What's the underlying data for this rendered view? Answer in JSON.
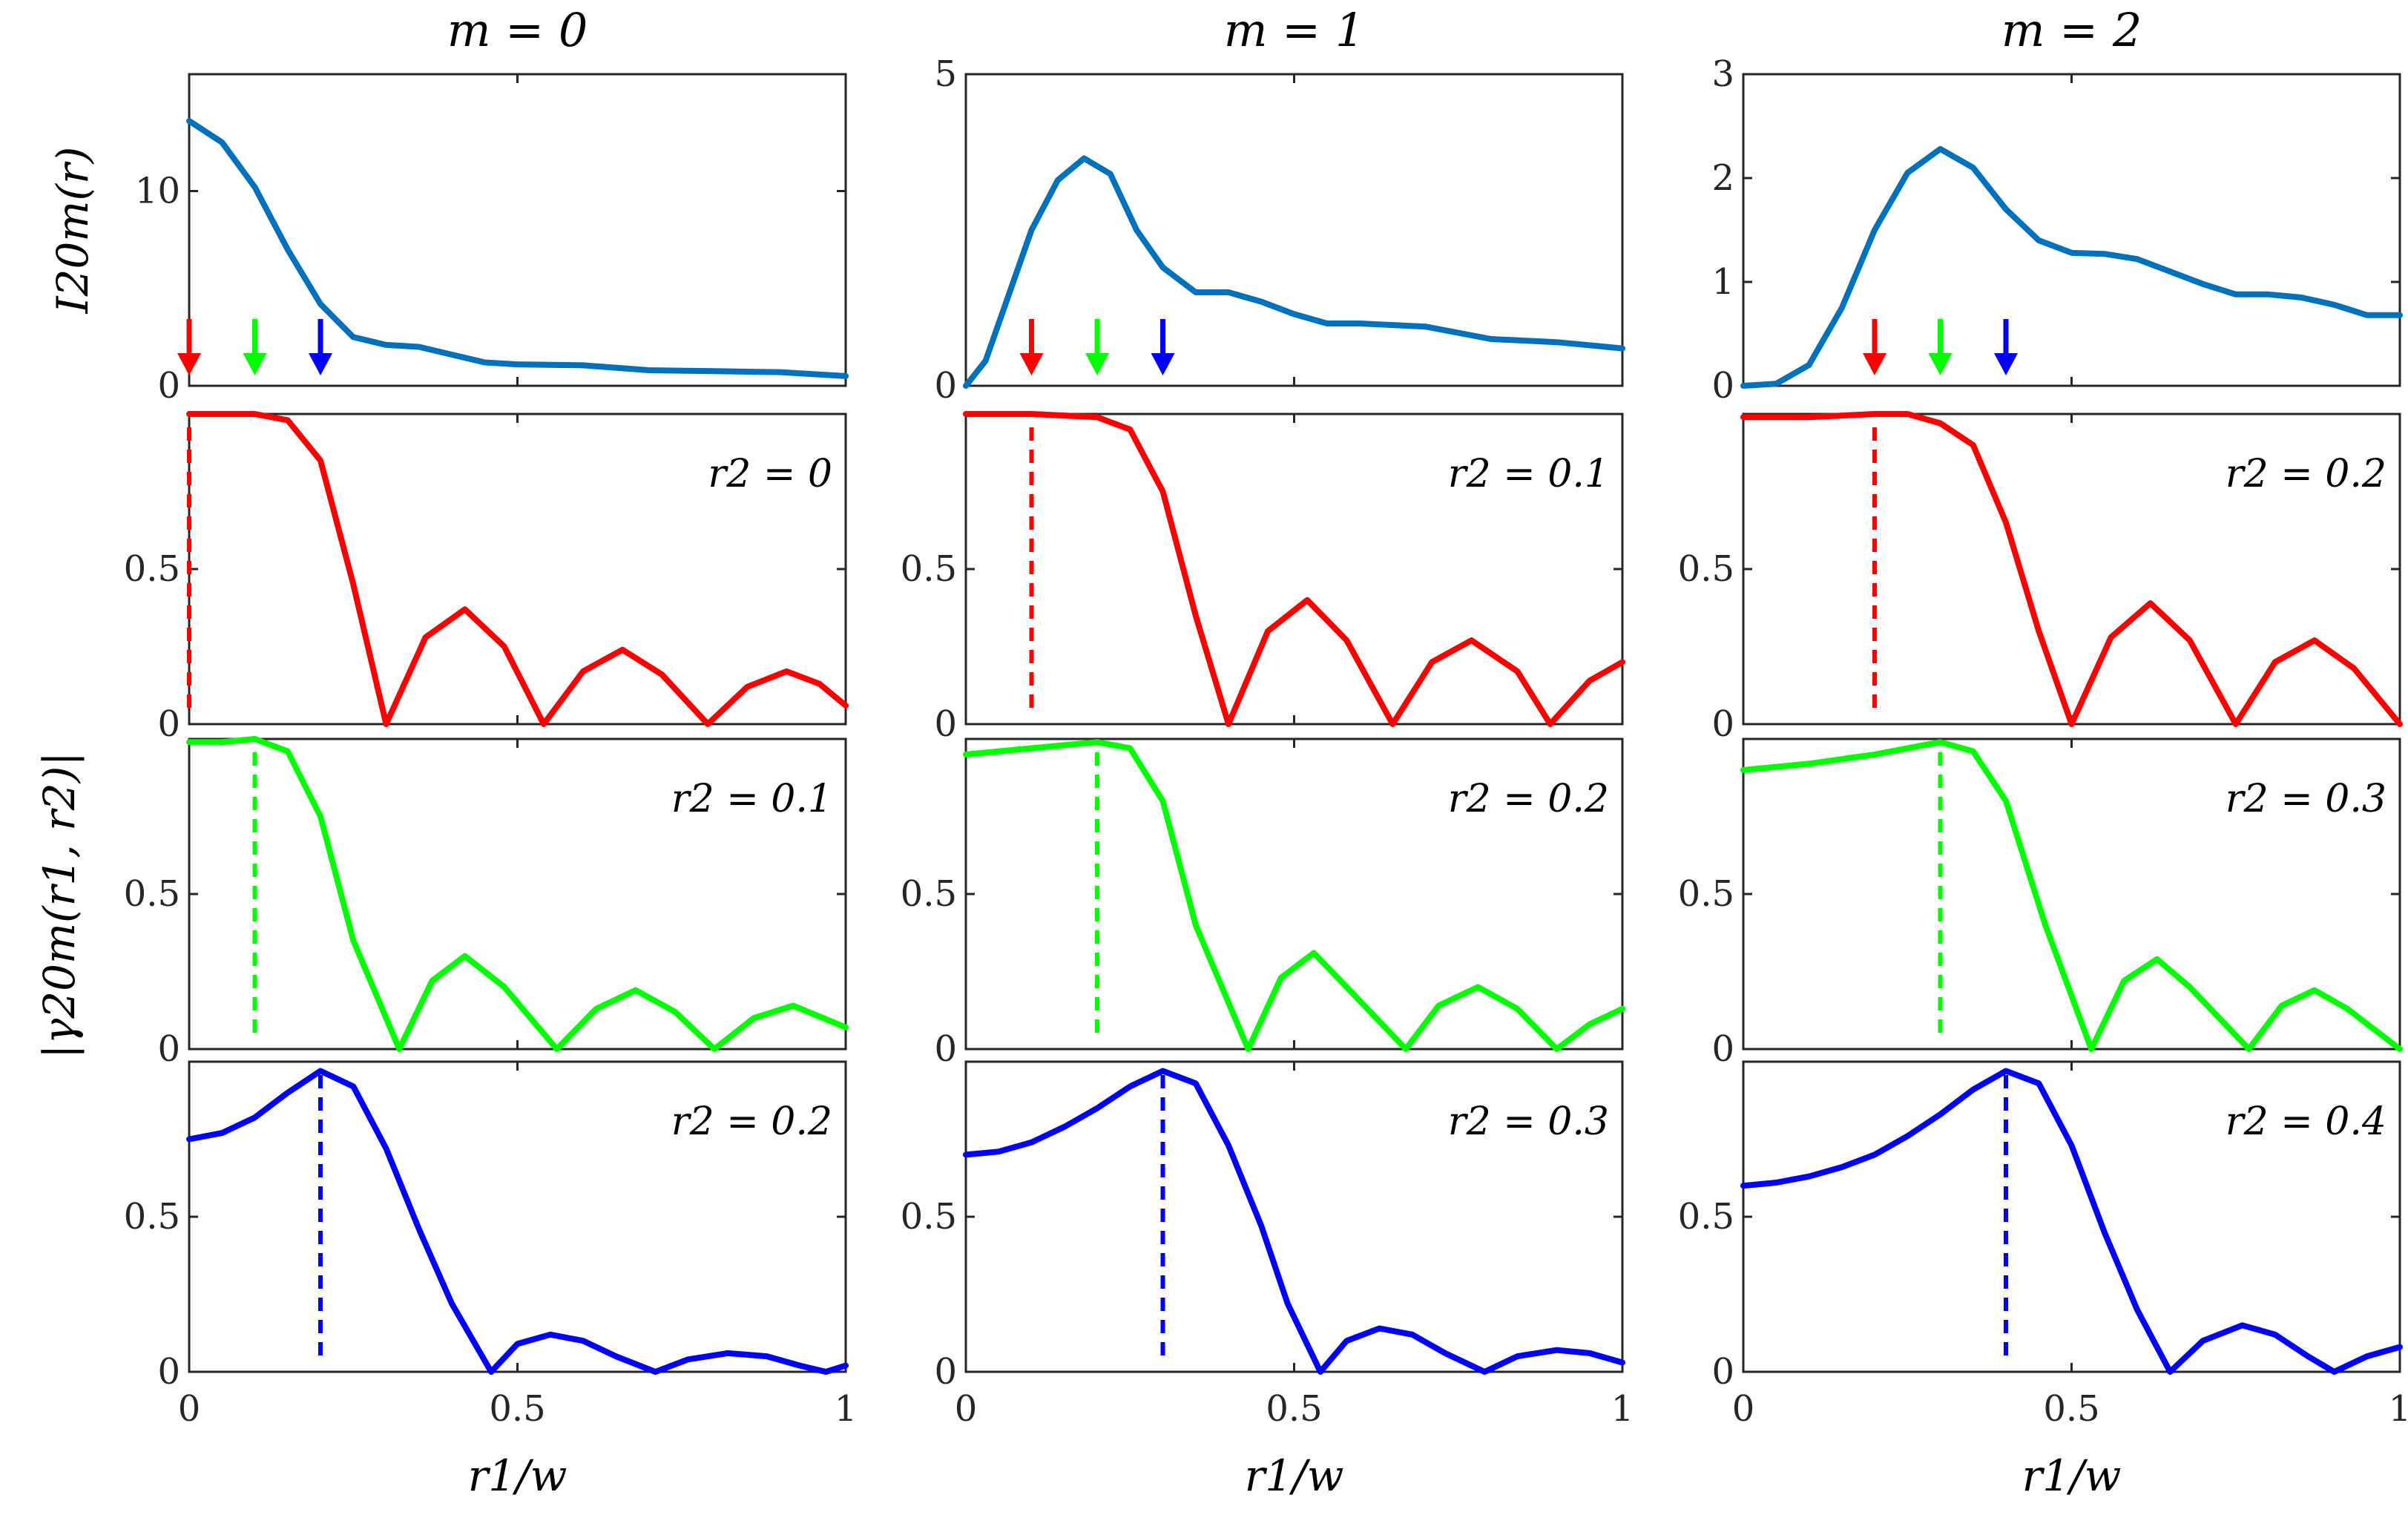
{
  "colors": {
    "intensity": "#0072BD",
    "red": "#FF0000",
    "green": "#00FF00",
    "blue": "#0000FF",
    "axis": "#262626"
  },
  "labels": {
    "ylabel_top": "I20m(r)",
    "ylabel_bottom": "|γ20m(r1, r2)|",
    "xlabel": "r1/w"
  },
  "chart_data": [
    {
      "type": "line",
      "title": "m = 0",
      "row": 0,
      "col": 0,
      "xlim": [
        0,
        1
      ],
      "ylim": [
        0,
        16
      ],
      "xticks": [
        0,
        0.5,
        1
      ],
      "yticks": [
        0,
        10
      ],
      "ytick_labels": [
        "0",
        "10"
      ],
      "series": [
        {
          "name": "I20m",
          "color": "#0072BD",
          "x": [
            0,
            0.05,
            0.1,
            0.15,
            0.2,
            0.25,
            0.3,
            0.35,
            0.4,
            0.45,
            0.5,
            0.6,
            0.7,
            0.8,
            0.9,
            1.0
          ],
          "y": [
            13.6,
            12.5,
            10.2,
            7.0,
            4.2,
            2.5,
            2.1,
            2.0,
            1.6,
            1.2,
            1.1,
            1.05,
            0.8,
            0.75,
            0.7,
            0.5
          ]
        }
      ],
      "arrows": [
        {
          "x": 0,
          "color": "#FF0000"
        },
        {
          "x": 0.1,
          "color": "#00FF00"
        },
        {
          "x": 0.2,
          "color": "#0000FF"
        }
      ]
    },
    {
      "type": "line",
      "title": "m = 1",
      "row": 0,
      "col": 1,
      "xlim": [
        0,
        1
      ],
      "ylim": [
        0,
        5
      ],
      "xticks": [
        0,
        0.5,
        1
      ],
      "yticks": [
        0,
        5
      ],
      "ytick_labels": [
        "0",
        "5"
      ],
      "series": [
        {
          "name": "I20m",
          "color": "#0072BD",
          "x": [
            0,
            0.03,
            0.06,
            0.1,
            0.14,
            0.18,
            0.22,
            0.26,
            0.3,
            0.35,
            0.4,
            0.45,
            0.5,
            0.55,
            0.6,
            0.7,
            0.8,
            0.9,
            1.0
          ],
          "y": [
            0,
            0.4,
            1.3,
            2.5,
            3.3,
            3.65,
            3.4,
            2.5,
            1.9,
            1.5,
            1.5,
            1.35,
            1.15,
            1.0,
            1.0,
            0.95,
            0.75,
            0.7,
            0.6
          ]
        }
      ],
      "arrows": [
        {
          "x": 0.1,
          "color": "#FF0000"
        },
        {
          "x": 0.2,
          "color": "#00FF00"
        },
        {
          "x": 0.3,
          "color": "#0000FF"
        }
      ]
    },
    {
      "type": "line",
      "title": "m = 2",
      "row": 0,
      "col": 2,
      "xlim": [
        0,
        1
      ],
      "ylim": [
        0,
        3
      ],
      "xticks": [
        0,
        0.5,
        1
      ],
      "yticks": [
        0,
        1,
        2,
        3
      ],
      "ytick_labels": [
        "0",
        "1",
        "2",
        "3"
      ],
      "series": [
        {
          "name": "I20m",
          "color": "#0072BD",
          "x": [
            0,
            0.05,
            0.1,
            0.15,
            0.2,
            0.25,
            0.3,
            0.35,
            0.4,
            0.45,
            0.5,
            0.55,
            0.6,
            0.65,
            0.7,
            0.75,
            0.8,
            0.85,
            0.9,
            0.95,
            1.0
          ],
          "y": [
            0,
            0.02,
            0.2,
            0.75,
            1.5,
            2.05,
            2.28,
            2.1,
            1.7,
            1.4,
            1.28,
            1.27,
            1.22,
            1.1,
            0.98,
            0.88,
            0.88,
            0.85,
            0.78,
            0.68,
            0.68
          ]
        }
      ],
      "arrows": [
        {
          "x": 0.2,
          "color": "#FF0000"
        },
        {
          "x": 0.3,
          "color": "#00FF00"
        },
        {
          "x": 0.4,
          "color": "#0000FF"
        }
      ]
    },
    {
      "type": "line",
      "row": 1,
      "col": 0,
      "xlim": [
        0,
        1
      ],
      "ylim": [
        0,
        1
      ],
      "yticks": [
        0,
        0.5
      ],
      "ytick_labels": [
        "0",
        "0.5"
      ],
      "annotation": "r2 = 0",
      "marker_x": 0,
      "color": "#FF0000",
      "series": [
        {
          "name": "gamma",
          "color": "#FF0000",
          "x": [
            0,
            0.1,
            0.15,
            0.2,
            0.25,
            0.3,
            0.36,
            0.42,
            0.48,
            0.54,
            0.6,
            0.66,
            0.72,
            0.79,
            0.85,
            0.91,
            0.96,
            1.0
          ],
          "y": [
            1.0,
            1.0,
            0.98,
            0.85,
            0.45,
            0.0,
            0.28,
            0.37,
            0.25,
            0.0,
            0.17,
            0.24,
            0.16,
            0.0,
            0.12,
            0.17,
            0.13,
            0.06
          ]
        }
      ]
    },
    {
      "type": "line",
      "row": 1,
      "col": 1,
      "xlim": [
        0,
        1
      ],
      "ylim": [
        0,
        1
      ],
      "yticks": [
        0,
        0.5
      ],
      "ytick_labels": [
        "0",
        "0.5"
      ],
      "annotation": "r2 = 0.1",
      "marker_x": 0.1,
      "color": "#FF0000",
      "series": [
        {
          "name": "gamma",
          "color": "#FF0000",
          "x": [
            0,
            0.1,
            0.2,
            0.25,
            0.3,
            0.35,
            0.4,
            0.46,
            0.52,
            0.58,
            0.65,
            0.71,
            0.77,
            0.84,
            0.89,
            0.95,
            1.0
          ],
          "y": [
            1.0,
            1.0,
            0.99,
            0.95,
            0.75,
            0.35,
            0.0,
            0.3,
            0.4,
            0.27,
            0.0,
            0.2,
            0.27,
            0.17,
            0.0,
            0.14,
            0.2
          ]
        }
      ]
    },
    {
      "type": "line",
      "row": 1,
      "col": 2,
      "xlim": [
        0,
        1
      ],
      "ylim": [
        0,
        1
      ],
      "yticks": [
        0,
        0.5
      ],
      "ytick_labels": [
        "0",
        "0.5"
      ],
      "annotation": "r2 = 0.2",
      "marker_x": 0.2,
      "color": "#FF0000",
      "series": [
        {
          "name": "gamma",
          "color": "#FF0000",
          "x": [
            0,
            0.1,
            0.2,
            0.25,
            0.3,
            0.35,
            0.4,
            0.45,
            0.5,
            0.56,
            0.62,
            0.68,
            0.75,
            0.81,
            0.87,
            0.93,
            1.0
          ],
          "y": [
            0.99,
            0.99,
            1.0,
            1.0,
            0.97,
            0.9,
            0.65,
            0.3,
            0.0,
            0.28,
            0.39,
            0.27,
            0.0,
            0.2,
            0.27,
            0.18,
            0.0
          ]
        }
      ]
    },
    {
      "type": "line",
      "row": 2,
      "col": 0,
      "xlim": [
        0,
        1
      ],
      "ylim": [
        0,
        1
      ],
      "yticks": [
        0,
        0.5
      ],
      "ytick_labels": [
        "0",
        "0.5"
      ],
      "annotation": "r2 = 0.1",
      "marker_x": 0.1,
      "color": "#00FF00",
      "series": [
        {
          "name": "gamma",
          "color": "#00FF00",
          "x": [
            0,
            0.05,
            0.1,
            0.15,
            0.2,
            0.25,
            0.32,
            0.37,
            0.42,
            0.48,
            0.56,
            0.62,
            0.68,
            0.74,
            0.8,
            0.86,
            0.92,
            1.0
          ],
          "y": [
            0.99,
            0.99,
            1.0,
            0.96,
            0.75,
            0.35,
            0.0,
            0.22,
            0.3,
            0.2,
            0.0,
            0.13,
            0.19,
            0.12,
            0.0,
            0.1,
            0.14,
            0.07
          ]
        }
      ]
    },
    {
      "type": "line",
      "row": 2,
      "col": 1,
      "xlim": [
        0,
        1
      ],
      "ylim": [
        0,
        1
      ],
      "yticks": [
        0,
        0.5
      ],
      "ytick_labels": [
        "0",
        "0.5"
      ],
      "annotation": "r2 = 0.2",
      "marker_x": 0.2,
      "color": "#00FF00",
      "series": [
        {
          "name": "gamma",
          "color": "#00FF00",
          "x": [
            0,
            0.1,
            0.2,
            0.25,
            0.3,
            0.35,
            0.43,
            0.48,
            0.53,
            0.58,
            0.67,
            0.72,
            0.78,
            0.84,
            0.9,
            0.95,
            1.0
          ],
          "y": [
            0.95,
            0.97,
            0.99,
            0.97,
            0.8,
            0.4,
            0.0,
            0.23,
            0.31,
            0.2,
            0.0,
            0.14,
            0.2,
            0.13,
            0.0,
            0.08,
            0.13
          ]
        }
      ]
    },
    {
      "type": "line",
      "row": 2,
      "col": 2,
      "xlim": [
        0,
        1
      ],
      "ylim": [
        0,
        1
      ],
      "yticks": [
        0,
        0.5
      ],
      "ytick_labels": [
        "0",
        "0.5"
      ],
      "annotation": "r2 = 0.3",
      "marker_x": 0.3,
      "color": "#00FF00",
      "series": [
        {
          "name": "gamma",
          "color": "#00FF00",
          "x": [
            0,
            0.1,
            0.2,
            0.3,
            0.35,
            0.4,
            0.46,
            0.53,
            0.58,
            0.63,
            0.68,
            0.77,
            0.82,
            0.87,
            0.92,
            1.0
          ],
          "y": [
            0.9,
            0.92,
            0.95,
            0.99,
            0.96,
            0.8,
            0.4,
            0.0,
            0.22,
            0.29,
            0.2,
            0.0,
            0.14,
            0.19,
            0.13,
            0.0
          ]
        }
      ]
    },
    {
      "type": "line",
      "row": 3,
      "col": 0,
      "xlim": [
        0,
        1
      ],
      "ylim": [
        0,
        1
      ],
      "yticks": [
        0,
        0.5
      ],
      "ytick_labels": [
        "0",
        "0.5"
      ],
      "annotation": "r2 = 0.2",
      "marker_x": 0.2,
      "color": "#0000FF",
      "series": [
        {
          "name": "gamma",
          "color": "#0000FF",
          "x": [
            0,
            0.05,
            0.1,
            0.15,
            0.2,
            0.25,
            0.3,
            0.35,
            0.4,
            0.46,
            0.5,
            0.55,
            0.6,
            0.65,
            0.71,
            0.76,
            0.82,
            0.88,
            0.93,
            0.97,
            1.0
          ],
          "y": [
            0.75,
            0.77,
            0.82,
            0.9,
            0.97,
            0.92,
            0.72,
            0.46,
            0.22,
            0.0,
            0.09,
            0.12,
            0.1,
            0.05,
            0.0,
            0.04,
            0.06,
            0.05,
            0.02,
            0.0,
            0.02
          ]
        }
      ]
    },
    {
      "type": "line",
      "row": 3,
      "col": 1,
      "xlim": [
        0,
        1
      ],
      "ylim": [
        0,
        1
      ],
      "yticks": [
        0,
        0.5
      ],
      "ytick_labels": [
        "0",
        "0.5"
      ],
      "annotation": "r2 = 0.3",
      "marker_x": 0.3,
      "color": "#0000FF",
      "series": [
        {
          "name": "gamma",
          "color": "#0000FF",
          "x": [
            0,
            0.05,
            0.1,
            0.15,
            0.2,
            0.25,
            0.3,
            0.35,
            0.4,
            0.45,
            0.49,
            0.54,
            0.58,
            0.63,
            0.68,
            0.73,
            0.79,
            0.84,
            0.9,
            0.95,
            1.0
          ],
          "y": [
            0.7,
            0.71,
            0.74,
            0.79,
            0.85,
            0.92,
            0.97,
            0.93,
            0.73,
            0.47,
            0.22,
            0.0,
            0.1,
            0.14,
            0.12,
            0.06,
            0.0,
            0.05,
            0.07,
            0.06,
            0.03
          ]
        }
      ]
    },
    {
      "type": "line",
      "row": 3,
      "col": 2,
      "xlim": [
        0,
        1
      ],
      "ylim": [
        0,
        1
      ],
      "yticks": [
        0,
        0.5
      ],
      "ytick_labels": [
        "0",
        "0.5"
      ],
      "annotation": "r2 = 0.4",
      "marker_x": 0.4,
      "color": "#0000FF",
      "series": [
        {
          "name": "gamma",
          "color": "#0000FF",
          "x": [
            0,
            0.05,
            0.1,
            0.15,
            0.2,
            0.25,
            0.3,
            0.35,
            0.4,
            0.45,
            0.5,
            0.55,
            0.6,
            0.65,
            0.7,
            0.76,
            0.81,
            0.86,
            0.9,
            0.95,
            1.0
          ],
          "y": [
            0.6,
            0.61,
            0.63,
            0.66,
            0.7,
            0.76,
            0.83,
            0.91,
            0.97,
            0.93,
            0.73,
            0.45,
            0.2,
            0.0,
            0.1,
            0.15,
            0.12,
            0.05,
            0.0,
            0.05,
            0.08
          ]
        }
      ]
    }
  ]
}
